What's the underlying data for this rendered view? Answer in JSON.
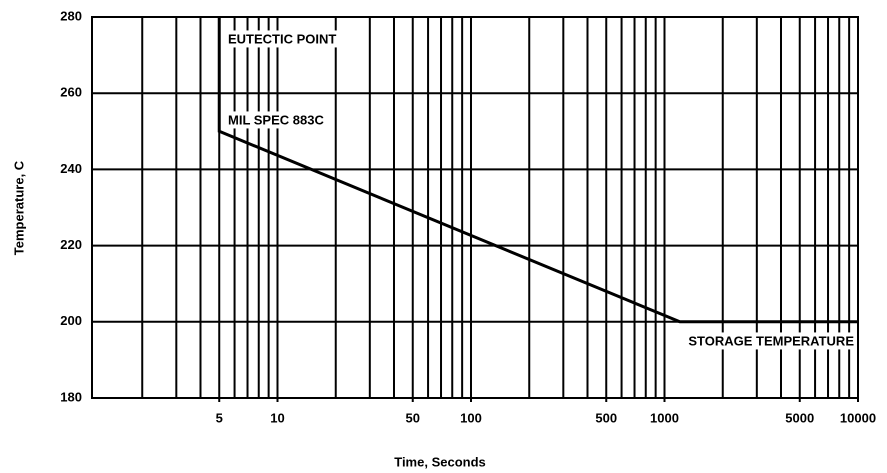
{
  "chart_data": {
    "type": "line",
    "x_label": "Time, Seconds",
    "y_label": "Temperature, C",
    "x": [
      5,
      5,
      1200,
      10000
    ],
    "series": [
      {
        "name": "MIL SPEC 883C",
        "color": "#000000",
        "values": [
          280,
          250,
          200,
          200
        ]
      }
    ],
    "annotations": [
      "EUTECTIC POINT",
      "MIL SPEC 883C",
      "STORAGE TEMPERATURE"
    ],
    "xscale": "log",
    "xlim": [
      1.1,
      10000
    ],
    "ylim": [
      180,
      280
    ],
    "xticks": [
      5,
      10,
      50,
      100,
      500,
      1000,
      5000,
      10000
    ],
    "xgrid": [
      2,
      3,
      4,
      5,
      6,
      7,
      8,
      9,
      10,
      20,
      30,
      40,
      50,
      60,
      70,
      80,
      90,
      100,
      200,
      300,
      400,
      500,
      600,
      700,
      800,
      900,
      1000,
      2000,
      3000,
      4000,
      5000,
      6000,
      7000,
      8000,
      9000,
      10000
    ],
    "yticks": [
      180,
      200,
      220,
      240,
      260,
      280
    ],
    "grid": true
  }
}
